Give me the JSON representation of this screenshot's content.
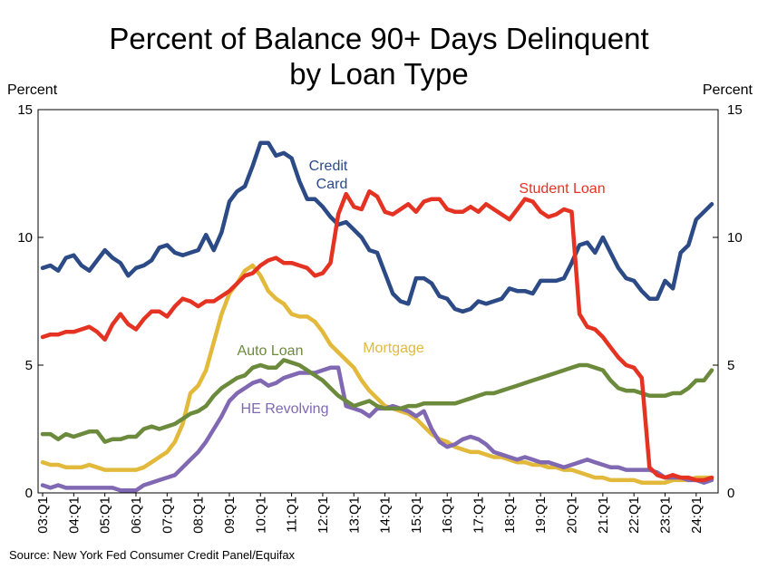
{
  "chart_data": {
    "type": "line",
    "title_lines": [
      "Percent of Balance 90+ Days Delinquent",
      "by Loan Type"
    ],
    "ylabel_left": "Percent",
    "ylabel_right": "Percent",
    "ylim": [
      0,
      15
    ],
    "yticks": [
      "0",
      "5",
      "10",
      "15"
    ],
    "grid": false,
    "x": [
      "03:Q1",
      "03:Q2",
      "03:Q3",
      "03:Q4",
      "04:Q1",
      "04:Q2",
      "04:Q3",
      "04:Q4",
      "05:Q1",
      "05:Q2",
      "05:Q3",
      "05:Q4",
      "06:Q1",
      "06:Q2",
      "06:Q3",
      "06:Q4",
      "07:Q1",
      "07:Q2",
      "07:Q3",
      "07:Q4",
      "08:Q1",
      "08:Q2",
      "08:Q3",
      "08:Q4",
      "09:Q1",
      "09:Q2",
      "09:Q3",
      "09:Q4",
      "10:Q1",
      "10:Q2",
      "10:Q3",
      "10:Q4",
      "11:Q1",
      "11:Q2",
      "11:Q3",
      "11:Q4",
      "12:Q1",
      "12:Q2",
      "12:Q3",
      "12:Q4",
      "13:Q1",
      "13:Q2",
      "13:Q3",
      "13:Q4",
      "14:Q1",
      "14:Q2",
      "14:Q3",
      "14:Q4",
      "15:Q1",
      "15:Q2",
      "15:Q3",
      "15:Q4",
      "16:Q1",
      "16:Q2",
      "16:Q3",
      "16:Q4",
      "17:Q1",
      "17:Q2",
      "17:Q3",
      "17:Q4",
      "18:Q1",
      "18:Q2",
      "18:Q3",
      "18:Q4",
      "19:Q1",
      "19:Q2",
      "19:Q3",
      "19:Q4",
      "20:Q1",
      "20:Q2",
      "20:Q3",
      "20:Q4",
      "21:Q1",
      "21:Q2",
      "21:Q3",
      "21:Q4",
      "22:Q1",
      "22:Q2",
      "22:Q3",
      "22:Q4",
      "23:Q1",
      "23:Q2",
      "23:Q3",
      "23:Q4",
      "24:Q1",
      "24:Q2",
      "24:Q3"
    ],
    "xtick_labels": [
      "03:Q1",
      "04:Q1",
      "05:Q1",
      "06:Q1",
      "07:Q1",
      "08:Q1",
      "09:Q1",
      "10:Q1",
      "11:Q1",
      "12:Q1",
      "13:Q1",
      "14:Q1",
      "15:Q1",
      "16:Q1",
      "17:Q1",
      "18:Q1",
      "19:Q1",
      "20:Q1",
      "21:Q1",
      "22:Q1",
      "23:Q1",
      "24:Q1"
    ],
    "series": [
      {
        "name": "Credit Card",
        "color": "#2b4a86",
        "label_lines": [
          "Credit",
          "Card"
        ],
        "values": [
          8.8,
          8.9,
          8.7,
          9.2,
          9.3,
          8.9,
          8.7,
          9.1,
          9.5,
          9.2,
          9.0,
          8.5,
          8.8,
          8.9,
          9.1,
          9.6,
          9.7,
          9.4,
          9.3,
          9.4,
          9.5,
          10.1,
          9.5,
          10.2,
          11.4,
          11.8,
          12.0,
          12.8,
          13.7,
          13.7,
          13.2,
          13.3,
          13.1,
          12.2,
          11.5,
          11.5,
          11.2,
          10.8,
          10.5,
          10.6,
          10.3,
          10.0,
          9.5,
          9.4,
          8.6,
          7.8,
          7.5,
          7.4,
          8.4,
          8.4,
          8.2,
          7.7,
          7.6,
          7.2,
          7.1,
          7.2,
          7.5,
          7.4,
          7.5,
          7.6,
          8.0,
          7.9,
          7.9,
          7.8,
          8.3,
          8.3,
          8.3,
          8.4,
          9.0,
          9.7,
          9.8,
          9.4,
          10.0,
          9.4,
          8.8,
          8.4,
          8.3,
          7.9,
          7.6,
          7.6,
          8.3,
          8.0,
          9.4,
          9.7,
          10.7,
          11.0,
          11.3
        ]
      },
      {
        "name": "Student Loan",
        "color": "#e53323",
        "label_lines": [
          "Student Loan"
        ],
        "values": [
          6.1,
          6.2,
          6.2,
          6.3,
          6.3,
          6.4,
          6.5,
          6.3,
          6.0,
          6.6,
          7.0,
          6.6,
          6.4,
          6.8,
          7.1,
          7.1,
          6.9,
          7.3,
          7.6,
          7.5,
          7.3,
          7.5,
          7.5,
          7.7,
          7.9,
          8.2,
          8.5,
          8.6,
          8.9,
          9.1,
          9.2,
          9.0,
          9.0,
          8.9,
          8.8,
          8.5,
          8.6,
          9.0,
          10.9,
          11.7,
          11.2,
          11.1,
          11.8,
          11.6,
          11.0,
          10.9,
          11.1,
          11.3,
          11.0,
          11.4,
          11.5,
          11.5,
          11.1,
          11.0,
          11.0,
          11.2,
          11.0,
          11.3,
          11.1,
          10.9,
          10.7,
          11.1,
          11.5,
          11.4,
          11.0,
          10.8,
          10.9,
          11.1,
          11.0,
          7.0,
          6.5,
          6.4,
          6.1,
          5.7,
          5.3,
          5.0,
          4.9,
          4.5,
          1.0,
          0.7,
          0.6,
          0.7,
          0.6,
          0.6,
          0.5,
          0.5,
          0.6
        ]
      },
      {
        "name": "Mortgage",
        "color": "#e2b93b",
        "label_lines": [
          "Mortgage"
        ],
        "values": [
          1.2,
          1.1,
          1.1,
          1.0,
          1.0,
          1.0,
          1.1,
          1.0,
          0.9,
          0.9,
          0.9,
          0.9,
          0.9,
          1.0,
          1.2,
          1.4,
          1.6,
          2.0,
          2.7,
          3.9,
          4.2,
          4.8,
          5.9,
          7.0,
          7.8,
          8.2,
          8.7,
          8.9,
          8.5,
          7.9,
          7.6,
          7.4,
          7.0,
          6.9,
          6.9,
          6.7,
          6.3,
          5.8,
          5.5,
          5.2,
          4.9,
          4.4,
          4.0,
          3.7,
          3.4,
          3.3,
          3.2,
          3.1,
          2.9,
          2.6,
          2.3,
          2.1,
          2.0,
          1.8,
          1.7,
          1.6,
          1.6,
          1.5,
          1.4,
          1.4,
          1.3,
          1.2,
          1.2,
          1.1,
          1.1,
          1.0,
          1.0,
          0.9,
          0.9,
          0.8,
          0.7,
          0.6,
          0.6,
          0.5,
          0.5,
          0.5,
          0.5,
          0.4,
          0.4,
          0.4,
          0.4,
          0.5,
          0.5,
          0.5,
          0.6,
          0.6,
          0.6
        ]
      },
      {
        "name": "Auto Loan",
        "color": "#6c8a3c",
        "label_lines": [
          "Auto Loan"
        ],
        "values": [
          2.3,
          2.3,
          2.1,
          2.3,
          2.2,
          2.3,
          2.4,
          2.4,
          2.0,
          2.1,
          2.1,
          2.2,
          2.2,
          2.5,
          2.6,
          2.5,
          2.6,
          2.7,
          2.9,
          3.1,
          3.2,
          3.4,
          3.8,
          4.1,
          4.3,
          4.5,
          4.6,
          4.9,
          5.0,
          4.9,
          4.9,
          5.2,
          5.1,
          5.0,
          4.8,
          4.6,
          4.4,
          4.1,
          3.8,
          3.6,
          3.4,
          3.5,
          3.6,
          3.4,
          3.3,
          3.3,
          3.3,
          3.4,
          3.4,
          3.5,
          3.5,
          3.5,
          3.5,
          3.5,
          3.6,
          3.7,
          3.8,
          3.9,
          3.9,
          4.0,
          4.1,
          4.2,
          4.3,
          4.4,
          4.5,
          4.6,
          4.7,
          4.8,
          4.9,
          5.0,
          5.0,
          4.9,
          4.8,
          4.4,
          4.1,
          4.0,
          4.0,
          3.9,
          3.8,
          3.8,
          3.8,
          3.9,
          3.9,
          4.1,
          4.4,
          4.4,
          4.8
        ]
      },
      {
        "name": "HE Revolving",
        "color": "#8168b2",
        "label_lines": [
          "HE Revolving"
        ],
        "values": [
          0.3,
          0.2,
          0.3,
          0.2,
          0.2,
          0.2,
          0.2,
          0.2,
          0.2,
          0.2,
          0.1,
          0.1,
          0.1,
          0.3,
          0.4,
          0.5,
          0.6,
          0.7,
          1.0,
          1.3,
          1.6,
          2.0,
          2.5,
          3.0,
          3.6,
          3.9,
          4.1,
          4.3,
          4.4,
          4.2,
          4.3,
          4.5,
          4.6,
          4.7,
          4.7,
          4.7,
          4.8,
          4.9,
          4.9,
          3.4,
          3.3,
          3.2,
          3.0,
          3.3,
          3.3,
          3.4,
          3.3,
          3.2,
          3.0,
          3.2,
          2.5,
          2.0,
          1.8,
          1.9,
          2.1,
          2.2,
          2.1,
          1.9,
          1.6,
          1.5,
          1.4,
          1.3,
          1.4,
          1.3,
          1.2,
          1.2,
          1.1,
          1.0,
          1.1,
          1.2,
          1.3,
          1.2,
          1.1,
          1.0,
          1.0,
          0.9,
          0.9,
          0.9,
          0.9,
          0.8,
          0.6,
          0.6,
          0.6,
          0.5,
          0.5,
          0.4,
          0.5
        ]
      }
    ],
    "source": "Source: New York Fed Consumer Credit Panel/Equifax"
  }
}
